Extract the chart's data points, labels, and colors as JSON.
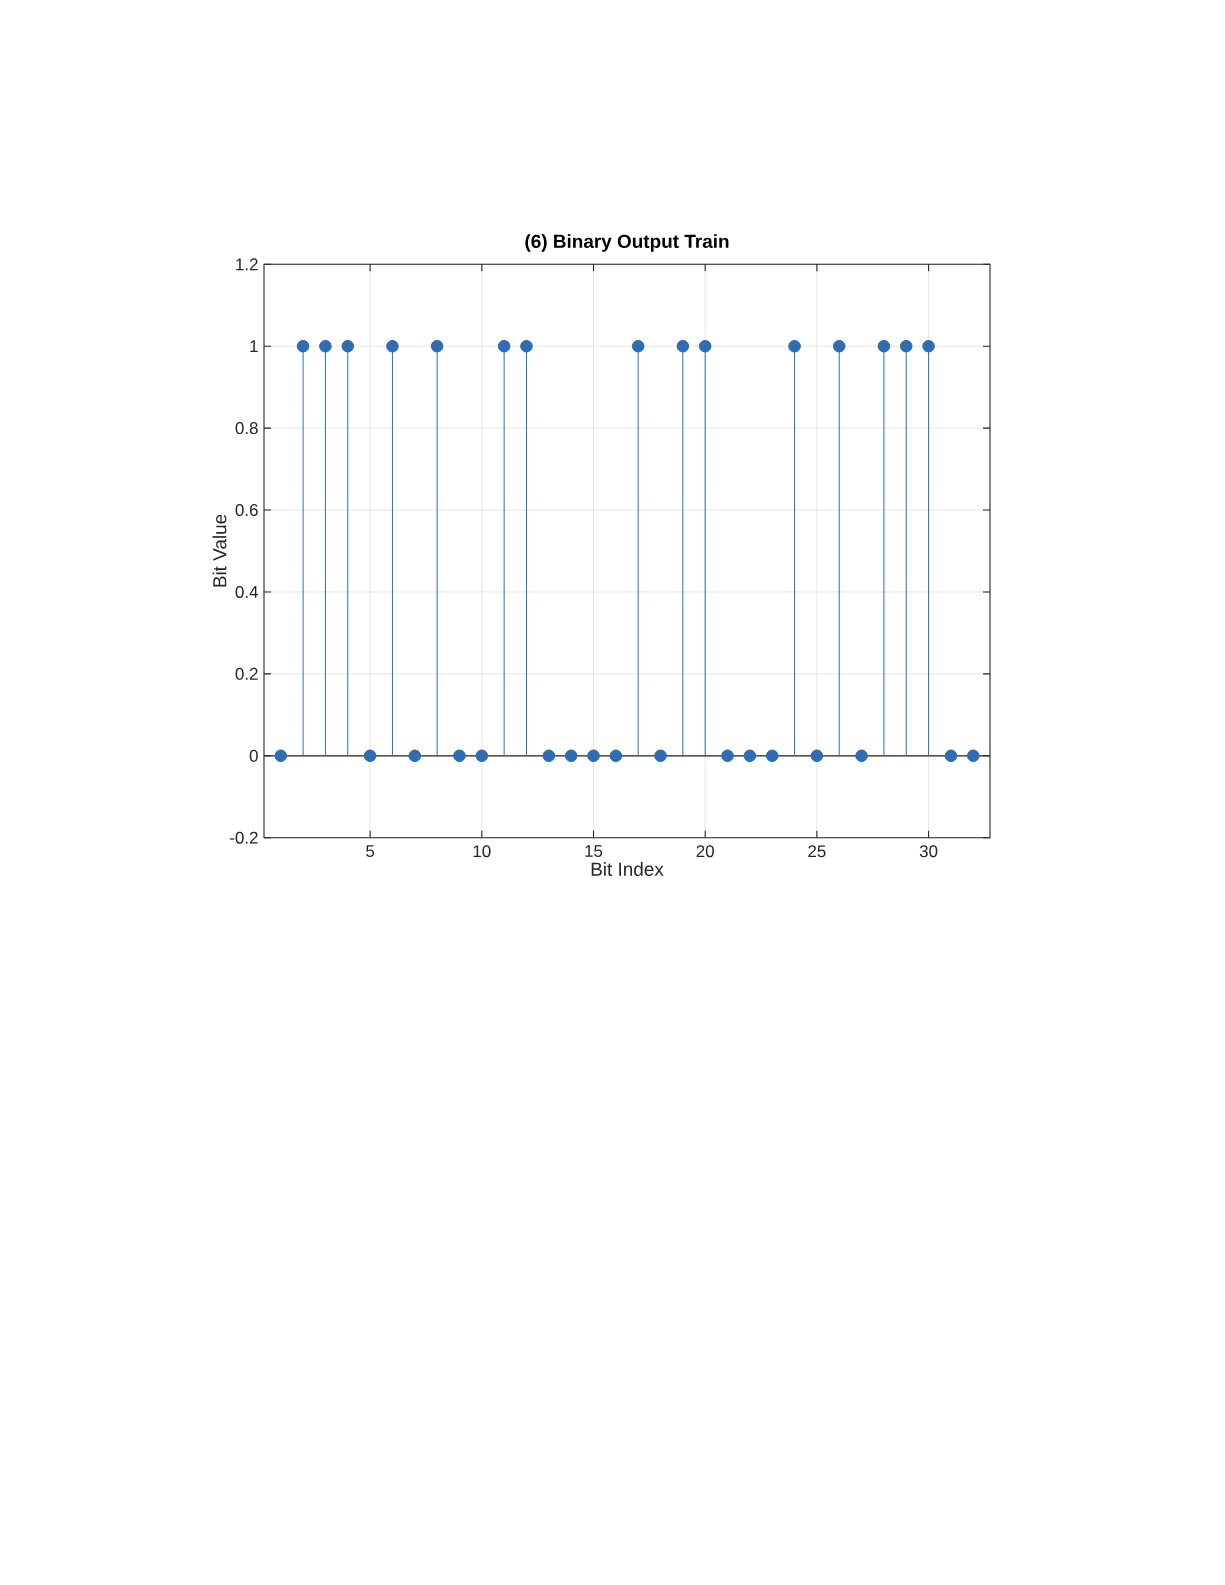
{
  "chart_data": {
    "type": "lollipop",
    "title": "(6) Binary Output Train",
    "xlabel": "Bit Index",
    "ylabel": "Bit Value",
    "x": [
      1,
      2,
      3,
      4,
      5,
      6,
      7,
      8,
      9,
      10,
      11,
      12,
      13,
      14,
      15,
      16,
      17,
      18,
      19,
      20,
      21,
      22,
      23,
      24,
      25,
      26,
      27,
      28,
      29,
      30,
      31,
      32
    ],
    "values": [
      0,
      1,
      1,
      1,
      0,
      1,
      0,
      1,
      0,
      0,
      1,
      1,
      0,
      0,
      0,
      0,
      1,
      0,
      1,
      1,
      0,
      0,
      0,
      1,
      0,
      1,
      0,
      1,
      1,
      1,
      0,
      0
    ],
    "color": "#2e6db5",
    "marker": "circle",
    "grid": true,
    "xlim": [
      0.25,
      32.75
    ],
    "ylim": [
      -0.2,
      1.2
    ],
    "xticks": [
      5,
      10,
      15,
      20,
      25,
      30
    ],
    "yticks": [
      -0.2,
      0,
      0.2,
      0.4,
      0.6,
      0.8,
      1,
      1.2
    ],
    "ref_lines": [
      {
        "axis": "y",
        "value": 0,
        "color": "#262626"
      }
    ]
  }
}
